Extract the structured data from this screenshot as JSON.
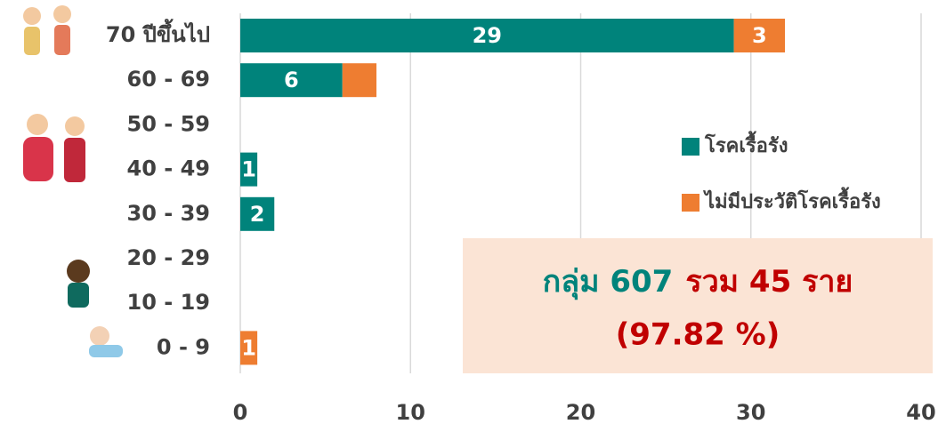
{
  "chart_data": {
    "type": "hbar_stacked",
    "categories": [
      "70 ปีขึ้นไป",
      "60 - 69",
      "50 - 59",
      "40 - 49",
      "30 - 39",
      "20 - 29",
      "10 - 19",
      "0 - 9"
    ],
    "series": [
      {
        "name": "โรคเรื้อรัง",
        "color": "#00837b",
        "values": [
          29,
          6,
          null,
          1,
          2,
          null,
          null,
          null
        ],
        "value_labels": [
          "29",
          "6",
          null,
          "1",
          "2",
          null,
          null,
          null
        ]
      },
      {
        "name": "ไม่มีประวัติโรคเรื้อรัง",
        "color": "#ee7d31",
        "values": [
          3,
          2,
          null,
          null,
          null,
          null,
          null,
          1
        ],
        "value_labels": [
          "3",
          null,
          null,
          null,
          null,
          null,
          null,
          "1"
        ]
      }
    ],
    "xlim": [
      0,
      40
    ],
    "xticks": [
      0,
      10,
      20,
      30,
      40
    ],
    "grid": true,
    "annotation": {
      "line1": [
        "กลุ่ม 607",
        "รวม  45 ราย"
      ],
      "line2": "(97.82 %)"
    }
  }
}
